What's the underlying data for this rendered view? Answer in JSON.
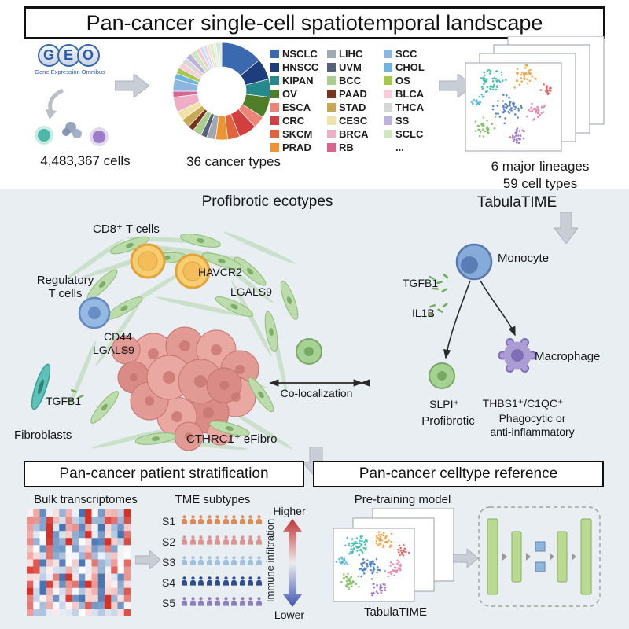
{
  "title": "Pan-cancer single-cell spatiotemporal landscape",
  "top": {
    "geo_name": "GEO",
    "geo_sub": "Gene Expression Omnibus",
    "cells": "4,483,367 cells",
    "cancer_types": "36 cancer types",
    "lineages": "6 major lineages",
    "celltypes": "59 cell types"
  },
  "chart_data": {
    "type": "pie",
    "title": "36 cancer types",
    "legend_position": "right",
    "labels": [
      "NSCLC",
      "HNSCC",
      "KIPAN",
      "OV",
      "ESCA",
      "CRC",
      "SKCM",
      "PRAD",
      "LIHC",
      "UVM",
      "BCC",
      "PAAD",
      "STAD",
      "CESC",
      "BRCA",
      "RB",
      "SCC",
      "CHOL",
      "OS",
      "BLCA",
      "THCA",
      "SS",
      "SCLC",
      "..."
    ],
    "values": [
      14,
      7,
      6,
      7,
      4,
      6,
      4,
      4,
      3,
      2,
      3,
      2,
      3,
      3,
      5,
      2,
      4,
      2,
      2,
      2,
      2,
      2,
      2,
      9
    ],
    "colors": [
      "#3b69b0",
      "#1d3d7d",
      "#28898c",
      "#4f7d28",
      "#ee8378",
      "#d23f3f",
      "#e1643c",
      "#ec9333",
      "#a0a8b0",
      "#55607a",
      "#a9cf8f",
      "#77361c",
      "#c8a953",
      "#f1e3a8",
      "#f0aec6",
      "#d9638f",
      "#8ab6e0",
      "#6fb3de",
      "#a6c84e",
      "#f6cdd8",
      "#d6d6d6",
      "#beb2dd",
      "#cfe6c0",
      null
    ],
    "others_breakdown": {
      "values": [
        1.4,
        1.3,
        1.2,
        1.1,
        1.1,
        1.0,
        0.95,
        0.95
      ],
      "colors": [
        "#f0c8d2",
        "#cfe0ef",
        "#e6d9f0",
        "#f5e2c4",
        "#d2ead9",
        "#eef0c6",
        "#c9e4ea",
        "#e2eac8"
      ]
    }
  },
  "middle": {
    "section_title": "Profibrotic ecotypes",
    "tabulatime": "TabulaTIME",
    "cd8": "CD8⁺ T cells",
    "havcr2": "HAVCR2",
    "lgals9_a": "LGALS9",
    "treg_1": "Regulatory",
    "treg_2": "T cells",
    "cd44": "CD44",
    "lgals9_b": "LGALS9",
    "tgfb1_left": "TGFB1",
    "fibroblasts": "Fibroblasts",
    "cthrc1": "CTHRC1⁺ eFibro",
    "coloc": "Co-localization",
    "monocyte": "Monocyte",
    "tgfb1_right": "TGFB1",
    "il1b": "IL1B",
    "macrophage": "Macrophage",
    "slpi": "SLPI⁺",
    "profibrotic": "Profibrotic",
    "thbs1": "THBS1⁺/C1QC⁺",
    "phago_1": "Phagocytic or",
    "phago_2": "anti-inflammatory"
  },
  "bottom_left": {
    "title": "Pan-cancer patient stratification",
    "bulk": "Bulk transcriptomes",
    "tme": "TME subtypes",
    "icons_per_row": 10,
    "subtypes": [
      {
        "label": "S1",
        "color": "#dd8a55"
      },
      {
        "label": "S2",
        "color": "#dc9490"
      },
      {
        "label": "S3",
        "color": "#a3c0dc"
      },
      {
        "label": "S4",
        "color": "#2e4d8e"
      },
      {
        "label": "S5",
        "color": "#8d7fbe"
      }
    ],
    "higher": "Higher",
    "lower": "Lower",
    "immune": "Immune infiltration",
    "gradient_top_color": "#c03535",
    "gradient_bottom_color": "#4055b5"
  },
  "bottom_right": {
    "title": "Pan-cancer celltype reference",
    "pretrain": "Pre-training model",
    "tabulatime": "TabulaTIME"
  }
}
